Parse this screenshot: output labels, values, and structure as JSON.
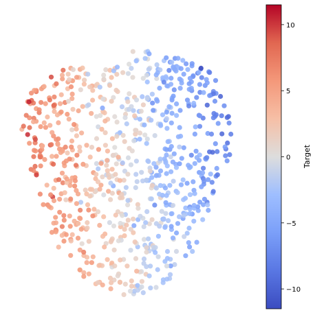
{
  "chart_data": {
    "type": "scatter",
    "title": "",
    "xlabel": "",
    "ylabel": "",
    "axes_visible": false,
    "grid": false,
    "xlim": [
      -1,
      1
    ],
    "ylim": [
      -1,
      1
    ],
    "point_count": 820,
    "colorbar": {
      "label": "Target",
      "colormap": "coolwarm",
      "range": [
        -11.5,
        11.5
      ],
      "ticks": [
        10,
        5,
        0,
        -5,
        -10
      ],
      "tick_labels": [
        "10",
        "5",
        "0",
        "−5",
        "−10"
      ]
    },
    "series": [
      {
        "name": "",
        "color_map": "Target"
      }
    ]
  },
  "colors": {
    "cool": "#3b4cc0",
    "neutral": "#dddddd",
    "warm": "#b40426"
  }
}
